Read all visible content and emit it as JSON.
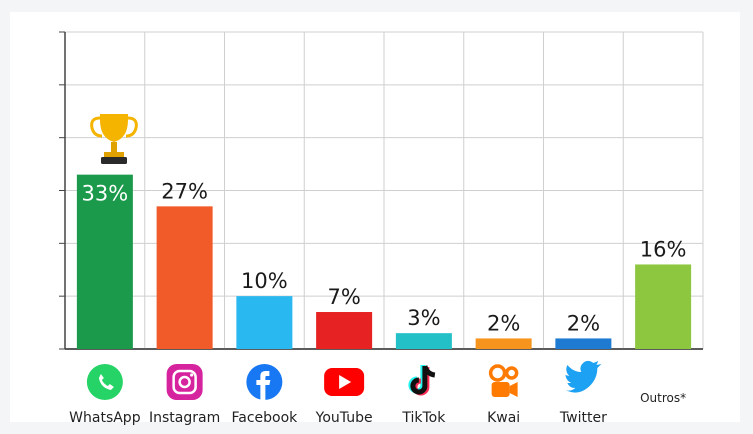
{
  "chart_data": {
    "type": "bar",
    "categories": [
      "WhatsApp",
      "Instagram",
      "Facebook",
      "YouTube",
      "TikTok",
      "Kwai",
      "Twitter",
      "Outros*"
    ],
    "values": [
      33,
      27,
      10,
      7,
      3,
      2,
      2,
      16
    ],
    "value_labels": [
      "33%",
      "27%",
      "10%",
      "7%",
      "3%",
      "2%",
      "2%",
      "16%"
    ],
    "colors": [
      "#1a9a4a",
      "#f15a29",
      "#29b8ef",
      "#e62222",
      "#23c0c8",
      "#f7941d",
      "#1f7bd1",
      "#8dc63f"
    ],
    "icons": [
      "whatsapp-icon",
      "instagram-icon",
      "facebook-icon",
      "youtube-icon",
      "tiktok-icon",
      "kwai-icon",
      "twitter-icon",
      ""
    ],
    "ylim": [
      0,
      60
    ],
    "grid": true,
    "highlight": "trophy-icon"
  }
}
